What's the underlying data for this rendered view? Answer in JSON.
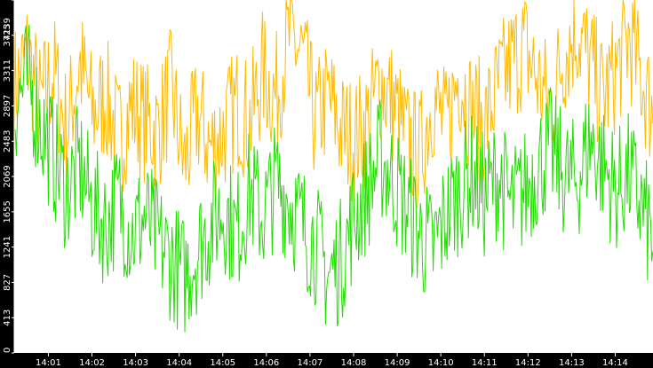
{
  "chart_data": {
    "type": "line",
    "title": "",
    "xlabel": "",
    "ylabel": "",
    "ylim": [
      0,
      4139
    ],
    "xlim": [
      "14:00:13",
      "14:14:52"
    ],
    "grid": false,
    "legend": "none",
    "y_ticks": [
      "0",
      "413",
      "827",
      "1241",
      "1655",
      "2069",
      "2483",
      "2897",
      "3311",
      "3725",
      "4139"
    ],
    "x_ticks": [
      "14:01",
      "14:02",
      "14:03",
      "14:04",
      "14:05",
      "14:06",
      "14:07",
      "14:08",
      "14:09",
      "14:10",
      "14:11",
      "14:12",
      "14:13",
      "14:14"
    ],
    "x_tick_times": [
      "14:01:00",
      "14:02:00",
      "14:03:00",
      "14:04:00",
      "14:05:00",
      "14:06:00",
      "14:07:00",
      "14:08:00",
      "14:09:00",
      "14:10:00",
      "14:11:00",
      "14:12:00",
      "14:13:00",
      "14:14:00"
    ],
    "series": [
      {
        "color": "#ffbb00",
        "time": [
          "14:00:13",
          "14:00:31",
          "14:00:49",
          "14:01:07",
          "14:01:25",
          "14:01:43",
          "14:02:01",
          "14:02:19",
          "14:02:37",
          "14:02:55",
          "14:03:13",
          "14:03:31",
          "14:03:49",
          "14:04:07",
          "14:04:25",
          "14:04:43",
          "14:05:01",
          "14:05:19",
          "14:05:37",
          "14:05:55",
          "14:06:13",
          "14:06:31",
          "14:06:49",
          "14:07:07",
          "14:07:25",
          "14:07:43",
          "14:08:01",
          "14:08:19",
          "14:08:37",
          "14:08:55",
          "14:09:13",
          "14:09:31",
          "14:09:49",
          "14:10:07",
          "14:10:25",
          "14:10:43",
          "14:11:01",
          "14:11:19",
          "14:11:37",
          "14:11:55",
          "14:12:13",
          "14:12:31",
          "14:12:49",
          "14:13:07",
          "14:13:25",
          "14:13:43",
          "14:14:01",
          "14:14:19",
          "14:14:37",
          "14:14:52"
        ],
        "values": [
          3100,
          3500,
          2900,
          3300,
          2600,
          3400,
          2800,
          3000,
          2500,
          2900,
          2700,
          2600,
          3100,
          2200,
          2800,
          2400,
          2600,
          2900,
          2700,
          3300,
          3000,
          3700,
          3500,
          2700,
          3000,
          2600,
          2500,
          2700,
          3200,
          2900,
          2500,
          2300,
          3000,
          2600,
          3300,
          2800,
          2700,
          3100,
          3400,
          3600,
          3200,
          2900,
          3500,
          3800,
          3400,
          3000,
          3300,
          3700,
          3200,
          2800
        ]
      },
      {
        "color": "#22dd00",
        "time": [
          "14:00:13",
          "14:00:31",
          "14:00:49",
          "14:01:07",
          "14:01:25",
          "14:01:43",
          "14:02:01",
          "14:02:19",
          "14:02:37",
          "14:02:55",
          "14:03:13",
          "14:03:31",
          "14:03:49",
          "14:04:07",
          "14:04:25",
          "14:04:43",
          "14:05:01",
          "14:05:19",
          "14:05:37",
          "14:05:55",
          "14:06:13",
          "14:06:31",
          "14:06:49",
          "14:07:07",
          "14:07:25",
          "14:07:43",
          "14:08:01",
          "14:08:19",
          "14:08:37",
          "14:08:55",
          "14:09:13",
          "14:09:31",
          "14:09:49",
          "14:10:07",
          "14:10:25",
          "14:10:43",
          "14:11:01",
          "14:11:19",
          "14:11:37",
          "14:11:55",
          "14:12:13",
          "14:12:31",
          "14:12:49",
          "14:13:07",
          "14:13:25",
          "14:13:43",
          "14:14:01",
          "14:14:19",
          "14:14:37",
          "14:14:52"
        ],
        "values": [
          2900,
          3200,
          2700,
          2300,
          1900,
          2200,
          1700,
          1500,
          1800,
          1400,
          1600,
          1300,
          1100,
          900,
          1200,
          1500,
          1700,
          1400,
          1900,
          1600,
          2000,
          1800,
          1500,
          1300,
          900,
          1100,
          1600,
          1900,
          2300,
          2000,
          1700,
          1400,
          1200,
          1600,
          1900,
          2100,
          1800,
          2100,
          1700,
          1900,
          2200,
          2400,
          2100,
          2000,
          2500,
          2200,
          1900,
          2100,
          1700,
          1300
        ]
      }
    ]
  }
}
